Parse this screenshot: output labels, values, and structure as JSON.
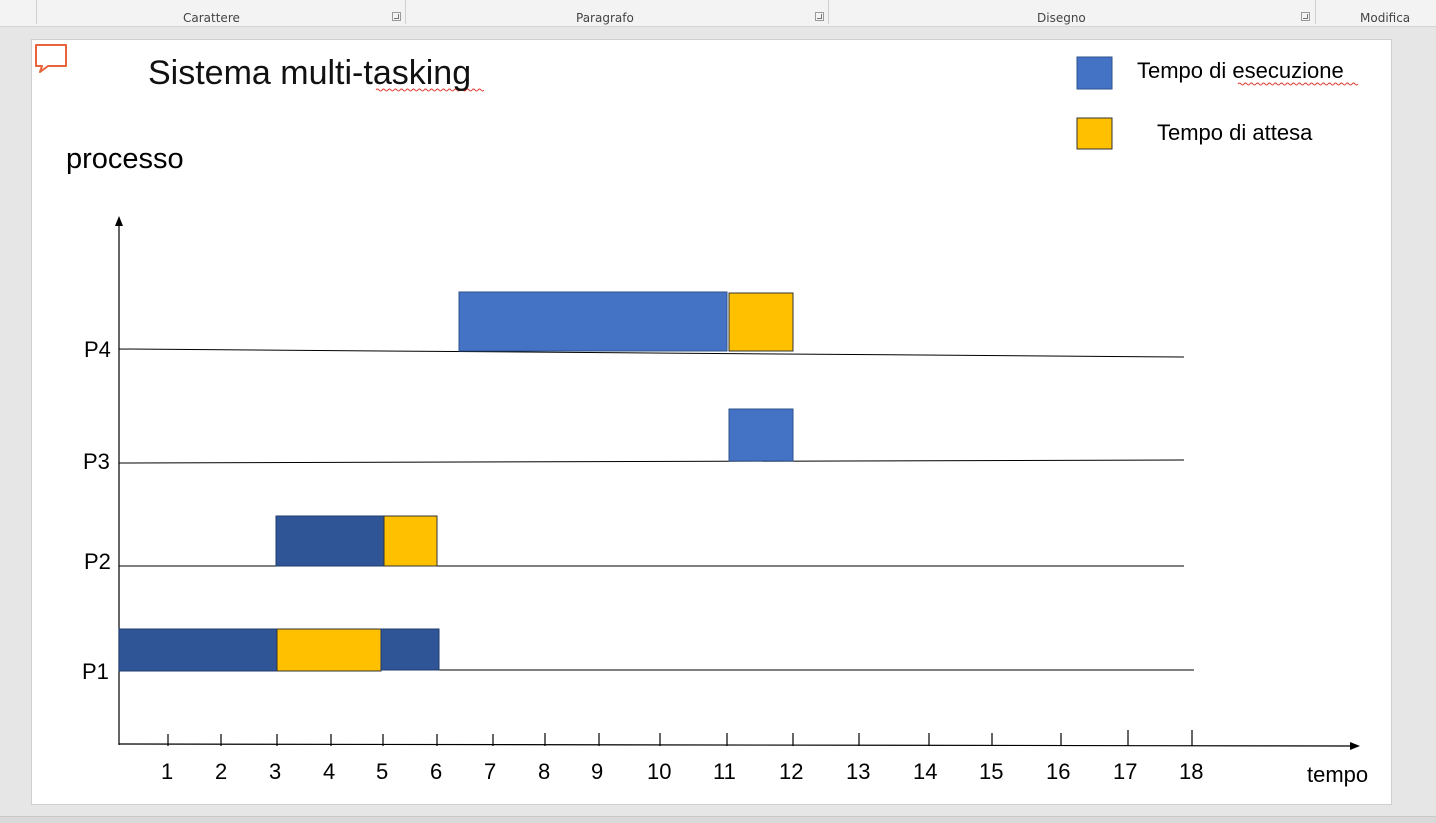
{
  "ribbon": {
    "groups": [
      "Carattere",
      "Paragrafo",
      "Disegno",
      "Modifica"
    ]
  },
  "slide": {
    "title": "Sistema multi-tasking",
    "legend": {
      "execution": "Tempo di esecuzione",
      "waiting": "Tempo di attesa"
    },
    "y_axis_label": "processo",
    "x_axis_label": "tempo",
    "processes": [
      "P1",
      "P2",
      "P3",
      "P4"
    ],
    "time_ticks": [
      "1",
      "2",
      "3",
      "4",
      "5",
      "6",
      "7",
      "8",
      "9",
      "10",
      "11",
      "12",
      "13",
      "14",
      "15",
      "16",
      "17",
      "18"
    ]
  },
  "colors": {
    "execution_light": "#4472c4",
    "execution_dark": "#2f5597",
    "waiting": "#ffc000",
    "comment_icon": "#e8623c"
  },
  "icons": {
    "comment": "speech-bubble-icon",
    "launcher": "dialog-launcher-icon"
  }
}
